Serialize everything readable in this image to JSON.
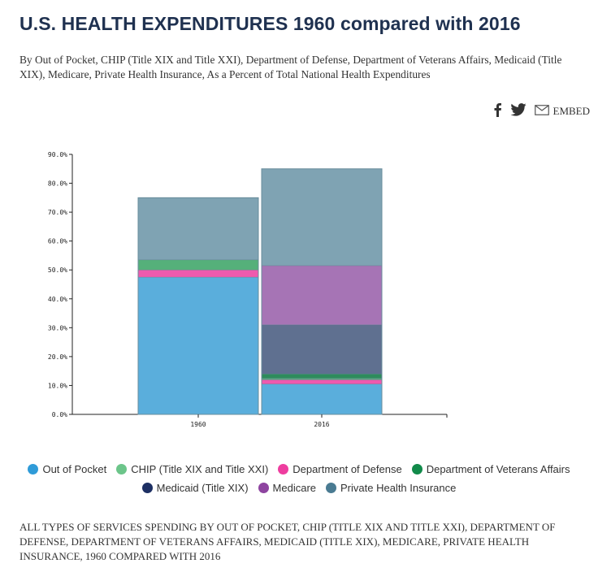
{
  "header": {
    "title": "U.S. HEALTH EXPENDITURES 1960 compared with 2016",
    "subtitle": "By Out of Pocket, CHIP (Title XIX and Title XXI), Department of Defense, Department of Veterans Affairs, Medicaid (Title XIX), Medicare, Private Health Insurance, As a Percent of Total National Health Expenditures"
  },
  "share": {
    "facebook": "facebook-icon",
    "twitter": "twitter-icon",
    "email": "email-icon",
    "embed_label": "EMBED"
  },
  "chart_data": {
    "type": "bar",
    "stacked": true,
    "title": "",
    "xlabel": "",
    "ylabel": "",
    "categories": [
      "1960",
      "2016"
    ],
    "ylim": [
      0,
      90
    ],
    "yticks": [
      0,
      10,
      20,
      30,
      40,
      50,
      60,
      70,
      80,
      90
    ],
    "ytick_labels": [
      "0.0%",
      "10.0%",
      "20.0%",
      "30.0%",
      "40.0%",
      "50.0%",
      "60.0%",
      "70.0%",
      "80.0%",
      "90.0%"
    ],
    "series": [
      {
        "name": "Out of Pocket",
        "color": "#5aaedc",
        "values": [
          47.5,
          10.5
        ]
      },
      {
        "name": "Department of Defense",
        "color": "#ee5aae",
        "values": [
          2.5,
          1.5
        ]
      },
      {
        "name": "CHIP (Title XIX and Title XXI)",
        "color": "#55b07a",
        "values": [
          3.5,
          0.5
        ]
      },
      {
        "name": "Department of Veterans Affairs",
        "color": "#2e8c5c",
        "values": [
          0,
          1.5
        ]
      },
      {
        "name": "Medicaid (Title XIX)",
        "color": "#5f7090",
        "values": [
          0,
          17
        ]
      },
      {
        "name": "Medicare",
        "color": "#a674b5",
        "values": [
          0,
          20.5
        ]
      },
      {
        "name": "Private Health Insurance",
        "color": "#7fa3b3",
        "values": [
          21.5,
          33.5
        ]
      }
    ],
    "legend_position": "bottom"
  },
  "legend": {
    "row1": [
      {
        "label": "Out of Pocket",
        "color": "#2f9bd8"
      },
      {
        "label": "CHIP (Title XIX and Title XXI)",
        "color": "#6cc58a"
      },
      {
        "label": "Department of Defense",
        "color": "#ee3d9f"
      },
      {
        "label": "Department of Veterans Affairs",
        "color": "#118a4a"
      }
    ],
    "row2": [
      {
        "label": "Medicaid (Title XIX)",
        "color": "#1d2f63"
      },
      {
        "label": "Medicare",
        "color": "#8e44a0"
      },
      {
        "label": "Private Health Insurance",
        "color": "#4a7b92"
      }
    ]
  },
  "caption": "ALL TYPES OF SERVICES SPENDING BY OUT OF POCKET, CHIP (TITLE XIX AND TITLE XXI), DEPARTMENT OF DEFENSE, DEPARTMENT OF VETERANS AFFAIRS, MEDICAID (TITLE XIX), MEDICARE, PRIVATE HEALTH INSURANCE, 1960 COMPARED WITH 2016"
}
